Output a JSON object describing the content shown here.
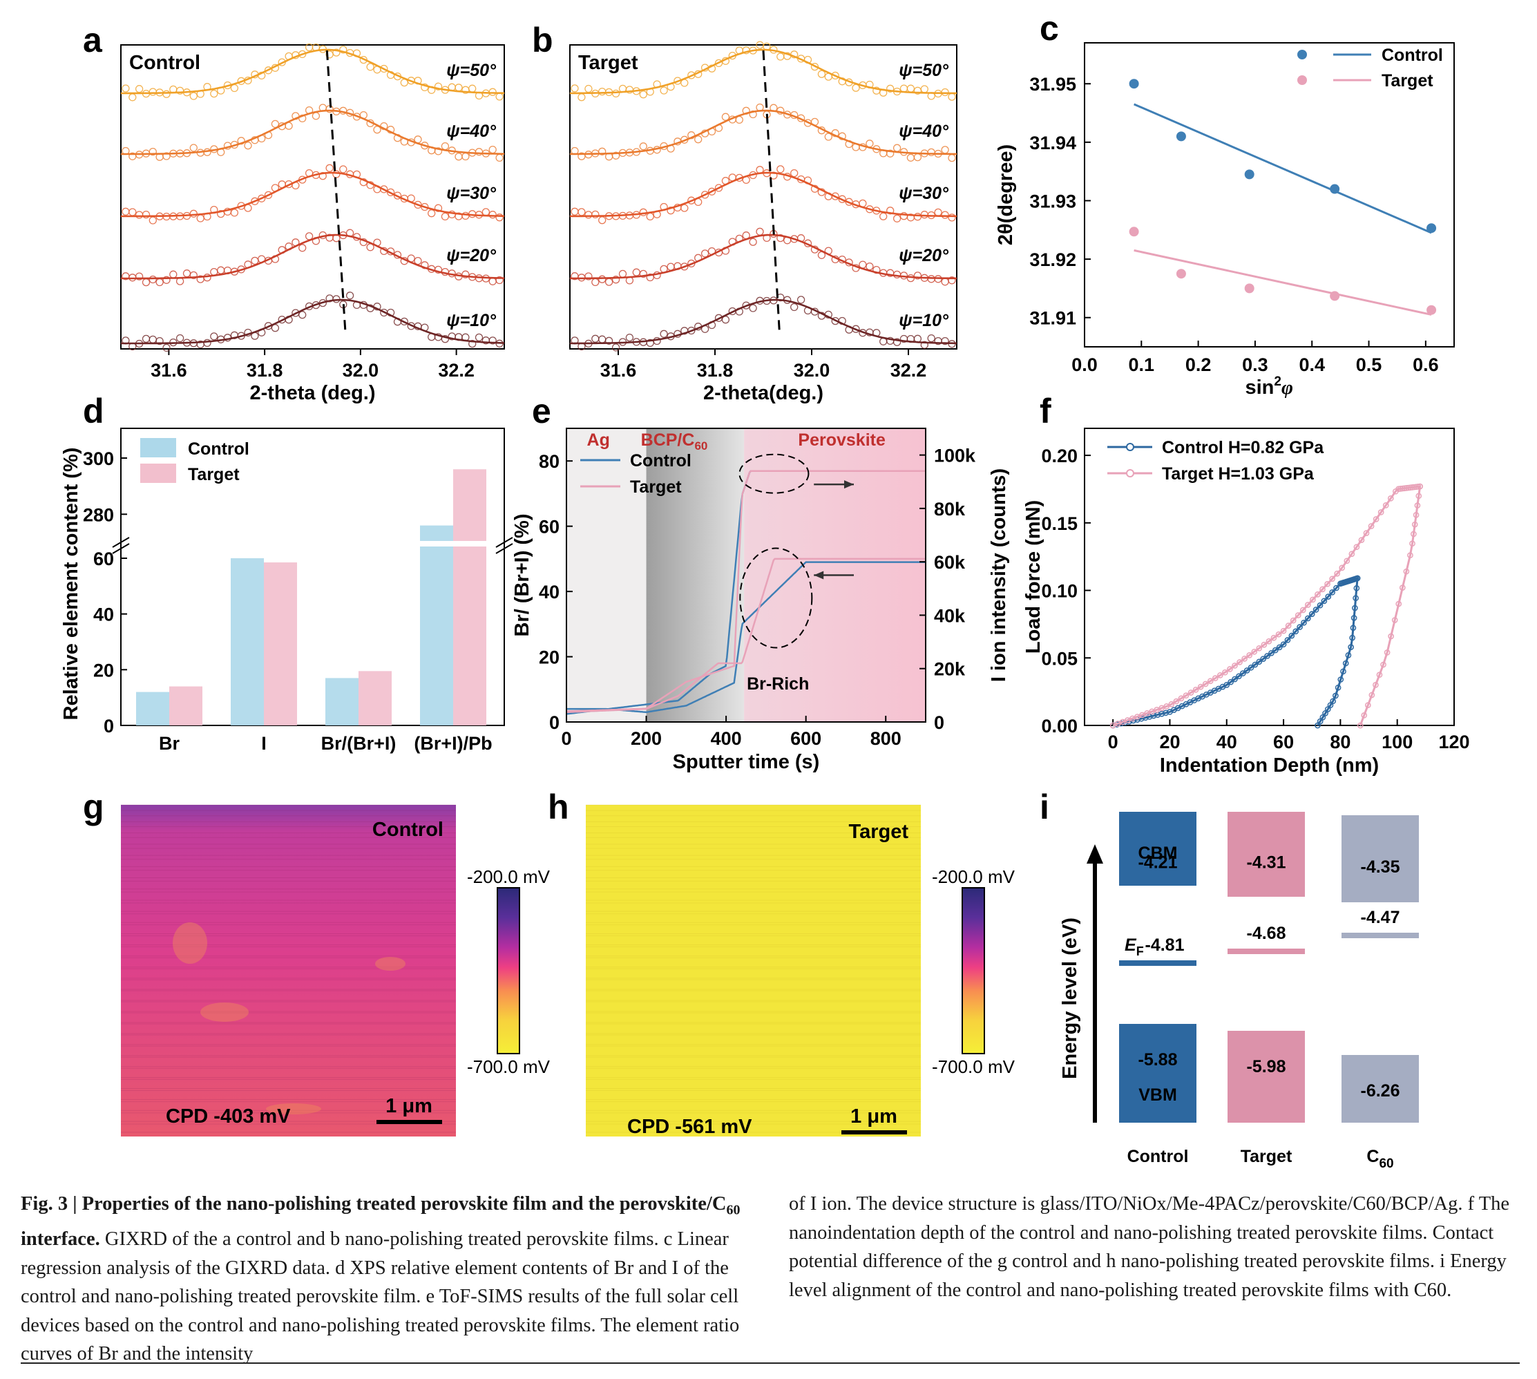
{
  "panels": {
    "a": {
      "letter": "a",
      "label": "Control",
      "xlabel": "2-theta (deg.)"
    },
    "b": {
      "letter": "b",
      "label": "Target",
      "xlabel": "2-theta(deg.)"
    },
    "c": {
      "letter": "c",
      "ylabel": "2θ(degree)",
      "xlabel_main": "sin",
      "xlabel_sup": "2",
      "xlabel_var": "φ"
    },
    "d": {
      "letter": "d",
      "ylabel": "Relative element content (%)"
    },
    "e": {
      "letter": "e",
      "ylabel_left": "Br/ (Br+I) (%)",
      "ylabel_right": "I ion intensity (counts)",
      "xlabel": "Sputter time (s)",
      "region_ag": "Ag",
      "region_bcp": "BCP/C",
      "region_bcp_sub": "60",
      "region_perov": "Perovskite",
      "annotation": "Br-Rich"
    },
    "f": {
      "letter": "f",
      "ylabel": "Load force (mN)",
      "xlabel": "Indentation Depth (nm)",
      "legend_control": "Control H=0.82 GPa",
      "legend_target": "Target   H=1.03 GPa"
    },
    "g": {
      "letter": "g",
      "label": "Control",
      "cpd": "CPD -403 mV",
      "scale": "1 μm",
      "cb_top": "-200.0 mV",
      "cb_bottom": "-700.0 mV"
    },
    "h": {
      "letter": "h",
      "label": "Target",
      "cpd": "CPD -561 mV",
      "scale": "1 μm",
      "cb_top": "-200.0 mV",
      "cb_bottom": "-700.0 mV"
    },
    "i": {
      "letter": "i",
      "ylabel": "Energy level (eV)",
      "cbm_label": "CBM",
      "vbm_label": "VBM",
      "ef_label": "E",
      "ef_sub": "F",
      "groups": [
        "Control",
        "Target",
        "C"
      ],
      "c60_sub": "60"
    }
  },
  "legend": {
    "control": "Control",
    "target": "Target"
  },
  "colors": {
    "control": "#3f7fb5",
    "target": "#e8a2b8",
    "control_bar": "#add8ea",
    "target_bar": "#f2bfcd",
    "c60": "#a5adc2",
    "i_control": "#2d68a0",
    "i_target": "#dc92aa"
  },
  "chart_data": [
    {
      "panel": "a",
      "type": "line",
      "title": "Control",
      "xlim": [
        31.5,
        32.3
      ],
      "xticks": [
        31.6,
        31.8,
        32.0,
        32.2
      ],
      "xlabel": "2-theta (deg.)",
      "series": [
        {
          "name": "ψ=50°",
          "peak": 31.93
        },
        {
          "name": "ψ=40°",
          "peak": 31.935
        },
        {
          "name": "ψ=30°",
          "peak": 31.94
        },
        {
          "name": "ψ=20°",
          "peak": 31.95
        },
        {
          "name": "ψ=10°",
          "peak": 31.96
        }
      ]
    },
    {
      "panel": "b",
      "type": "line",
      "title": "Target",
      "xlim": [
        31.5,
        32.3
      ],
      "xticks": [
        31.6,
        31.8,
        32.0,
        32.2
      ],
      "xlabel": "2-theta(deg.)",
      "series": [
        {
          "name": "ψ=50°",
          "peak": 31.9
        },
        {
          "name": "ψ=40°",
          "peak": 31.905
        },
        {
          "name": "ψ=30°",
          "peak": 31.91
        },
        {
          "name": "ψ=20°",
          "peak": 31.915
        },
        {
          "name": "ψ=10°",
          "peak": 31.925
        }
      ]
    },
    {
      "panel": "c",
      "type": "scatter",
      "xlim": [
        0.0,
        0.65
      ],
      "ylim": [
        31.905,
        31.957
      ],
      "xticks": [
        0.0,
        0.1,
        0.2,
        0.3,
        0.4,
        0.5,
        0.6
      ],
      "yticks": [
        31.91,
        31.92,
        31.93,
        31.94,
        31.95
      ],
      "series": [
        {
          "name": "Control",
          "x": [
            0.087,
            0.17,
            0.29,
            0.44,
            0.61
          ],
          "y": [
            31.95,
            31.941,
            31.9345,
            31.932,
            31.9253
          ],
          "fit": [
            [
              0.087,
              31.9465
            ],
            [
              0.61,
              31.9245
            ]
          ]
        },
        {
          "name": "Target",
          "x": [
            0.087,
            0.17,
            0.29,
            0.44,
            0.61
          ],
          "y": [
            31.9247,
            31.9175,
            31.915,
            31.9137,
            31.9113
          ],
          "fit": [
            [
              0.087,
              31.9215
            ],
            [
              0.61,
              31.9105
            ]
          ]
        }
      ]
    },
    {
      "panel": "d",
      "type": "bar",
      "categories": [
        "Br",
        "I",
        "Br/(Br+I)",
        "(Br+I)/Pb"
      ],
      "yticks_lower": [
        0,
        20,
        40,
        60
      ],
      "yticks_upper": [
        280,
        300
      ],
      "series": [
        {
          "name": "Control",
          "values": [
            12,
            60,
            17,
            276
          ]
        },
        {
          "name": "Target",
          "values": [
            14,
            58.5,
            19.5,
            296
          ]
        }
      ]
    },
    {
      "panel": "e",
      "type": "line",
      "xlim": [
        0,
        900
      ],
      "ylim_left": [
        0,
        90
      ],
      "ylim_right": [
        0,
        110000
      ],
      "xticks": [
        0,
        200,
        400,
        600,
        800
      ],
      "yticks_left": [
        0,
        20,
        40,
        60,
        80
      ],
      "yticks_right": [
        "0",
        "20k",
        "40k",
        "60k",
        "80k",
        "100k"
      ],
      "series": [
        {
          "name": "Control",
          "ratio": [
            [
              0,
              4
            ],
            [
              100,
              4
            ],
            [
              200,
              3
            ],
            [
              300,
              5
            ],
            [
              420,
              12
            ],
            [
              440,
              30
            ],
            [
              600,
              49
            ],
            [
              900,
              49
            ]
          ],
          "intensity": [
            [
              0,
              3000
            ],
            [
              280,
              8000
            ],
            [
              360,
              18000
            ],
            [
              400,
              21000
            ],
            [
              440,
              85000
            ],
            [
              460,
              94000
            ],
            [
              900,
              94000
            ]
          ]
        },
        {
          "name": "Target",
          "ratio": [
            [
              0,
              3
            ],
            [
              200,
              4
            ],
            [
              280,
              8
            ],
            [
              380,
              18
            ],
            [
              440,
              18
            ],
            [
              470,
              30
            ],
            [
              520,
              50
            ],
            [
              900,
              50
            ]
          ],
          "intensity": [
            [
              0,
              4000
            ],
            [
              200,
              5000
            ],
            [
              300,
              15000
            ],
            [
              420,
              21000
            ],
            [
              440,
              85000
            ],
            [
              460,
              94000
            ],
            [
              900,
              94000
            ]
          ]
        }
      ]
    },
    {
      "panel": "f",
      "type": "line",
      "xlim": [
        -10,
        120
      ],
      "ylim": [
        0,
        0.22
      ],
      "xticks": [
        0,
        20,
        40,
        60,
        80,
        100,
        120
      ],
      "yticks": [
        0.0,
        0.05,
        0.1,
        0.15,
        0.2
      ],
      "series": [
        {
          "name": "Control H=0.82 GPa",
          "loading": [
            [
              0,
              0
            ],
            [
              20,
              0.01
            ],
            [
              40,
              0.03
            ],
            [
              60,
              0.06
            ],
            [
              80,
              0.105
            ],
            [
              86,
              0.109
            ]
          ],
          "unloading": [
            [
              86,
              0.109
            ],
            [
              84,
              0.06
            ],
            [
              78,
              0.02
            ],
            [
              72,
              0.0
            ]
          ]
        },
        {
          "name": "Target H=1.03 GPa",
          "loading": [
            [
              0,
              0
            ],
            [
              20,
              0.015
            ],
            [
              40,
              0.04
            ],
            [
              60,
              0.07
            ],
            [
              80,
              0.115
            ],
            [
              100,
              0.175
            ],
            [
              108,
              0.177
            ]
          ],
          "unloading": [
            [
              108,
              0.177
            ],
            [
              105,
              0.13
            ],
            [
              96,
              0.05
            ],
            [
              87,
              0.0
            ]
          ]
        }
      ]
    },
    {
      "panel": "i",
      "type": "bar",
      "categories": [
        "Control",
        "Target",
        "C60"
      ],
      "cbm": [
        -4.21,
        -4.31,
        -4.35
      ],
      "vbm": [
        -5.88,
        -5.98,
        -6.26
      ],
      "ef": [
        -4.81,
        -4.68,
        -4.47
      ],
      "labels": {
        "cbm": [
          "-4.21",
          "-4.31",
          "-4.35"
        ],
        "vbm": [
          "-5.88",
          "-5.98",
          "-6.26"
        ],
        "ef": [
          "-4.81",
          "-4.68",
          "-4.47"
        ]
      }
    }
  ],
  "caption": {
    "fig_label": "Fig. 3 | Properties of the nano-polishing treated perovskite film and the perovskite/C",
    "fig_label_sub": "60",
    "fig_label_end": " interface.",
    "left_text": "GIXRD of the a control and b nano-polishing treated perovskite films. c Linear regression analysis of the GIXRD data. d XPS relative element contents of Br and I of the control and nano-polishing treated perovskite film. e ToF-SIMS results of the full solar cell devices based on the control and nano-polishing treated perovskite films. The element ratio curves of Br and the intensity",
    "right_text": "of I ion. The device structure is glass/ITO/NiOx/Me-4PACz/perovskite/C60/BCP/Ag. f The nanoindentation depth of the control and nano-polishing treated perovskite films. Contact potential difference of the g control and h nano-polishing treated perovskite films. i Energy level alignment of the control and nano-polishing treated perovskite films with C60."
  }
}
